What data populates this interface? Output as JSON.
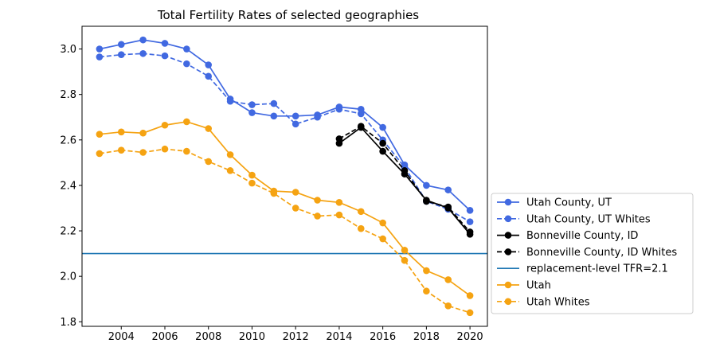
{
  "chart_data": {
    "type": "line",
    "title": "Total Fertility Rates of selected geographies",
    "xlabel": "",
    "ylabel": "",
    "xlim": [
      2002.2,
      2020.8
    ],
    "ylim": [
      1.78,
      3.1
    ],
    "xticks": [
      2004,
      2006,
      2008,
      2010,
      2012,
      2014,
      2016,
      2018,
      2020
    ],
    "xtick_labels": [
      "2004",
      "2006",
      "2008",
      "2010",
      "2012",
      "2014",
      "2016",
      "2018",
      "2020"
    ],
    "yticks": [
      1.8,
      2.0,
      2.2,
      2.4,
      2.6,
      2.8,
      3.0
    ],
    "ytick_labels": [
      "1.8",
      "2.0",
      "2.2",
      "2.4",
      "2.6",
      "2.8",
      "3.0"
    ],
    "grid": false,
    "legend_placement": "outside right, bottom",
    "series": [
      {
        "name": "Utah County, UT",
        "color": "#4169e1",
        "dashed": false,
        "x": [
          2003,
          2004,
          2005,
          2006,
          2007,
          2008,
          2009,
          2010,
          2011,
          2012,
          2013,
          2014,
          2015,
          2016,
          2017,
          2018,
          2019,
          2020
        ],
        "y": [
          3.0,
          3.02,
          3.04,
          3.025,
          3.0,
          2.93,
          2.78,
          2.72,
          2.705,
          2.705,
          2.71,
          2.745,
          2.735,
          2.655,
          2.49,
          2.4,
          2.38,
          2.29
        ]
      },
      {
        "name": "Utah County, UT Whites",
        "color": "#4169e1",
        "dashed": true,
        "x": [
          2003,
          2004,
          2005,
          2006,
          2007,
          2008,
          2009,
          2010,
          2011,
          2012,
          2013,
          2014,
          2015,
          2016,
          2017,
          2018,
          2019,
          2020
        ],
        "y": [
          2.965,
          2.975,
          2.98,
          2.97,
          2.935,
          2.88,
          2.77,
          2.755,
          2.76,
          2.67,
          2.7,
          2.735,
          2.715,
          2.6,
          2.48,
          2.33,
          2.295,
          2.24
        ]
      },
      {
        "name": "Bonneville County, ID",
        "color": "#000000",
        "dashed": false,
        "x": [
          2014,
          2015,
          2016,
          2017,
          2018,
          2019,
          2020
        ],
        "y": [
          2.585,
          2.655,
          2.55,
          2.45,
          2.335,
          2.3,
          2.185
        ]
      },
      {
        "name": "Bonneville County, ID Whites",
        "color": "#000000",
        "dashed": true,
        "x": [
          2014,
          2015,
          2016,
          2017,
          2018,
          2019,
          2020
        ],
        "y": [
          2.605,
          2.66,
          2.585,
          2.465,
          2.33,
          2.305,
          2.195
        ]
      },
      {
        "name": "replacement-level TFR=2.1",
        "color": "#1f77b4",
        "hline": 2.1
      },
      {
        "name": "Utah",
        "color": "#f5a312",
        "dashed": false,
        "x": [
          2003,
          2004,
          2005,
          2006,
          2007,
          2008,
          2009,
          2010,
          2011,
          2012,
          2013,
          2014,
          2015,
          2016,
          2017,
          2018,
          2019,
          2020
        ],
        "y": [
          2.625,
          2.635,
          2.63,
          2.665,
          2.68,
          2.65,
          2.535,
          2.445,
          2.375,
          2.37,
          2.335,
          2.325,
          2.285,
          2.235,
          2.115,
          2.025,
          1.985,
          1.915
        ]
      },
      {
        "name": "Utah Whites",
        "color": "#f5a312",
        "dashed": true,
        "x": [
          2003,
          2004,
          2005,
          2006,
          2007,
          2008,
          2009,
          2010,
          2011,
          2012,
          2013,
          2014,
          2015,
          2016,
          2017,
          2018,
          2019,
          2020
        ],
        "y": [
          2.54,
          2.555,
          2.545,
          2.56,
          2.55,
          2.505,
          2.465,
          2.41,
          2.365,
          2.3,
          2.265,
          2.27,
          2.21,
          2.165,
          2.07,
          1.935,
          1.87,
          1.84
        ]
      }
    ]
  }
}
